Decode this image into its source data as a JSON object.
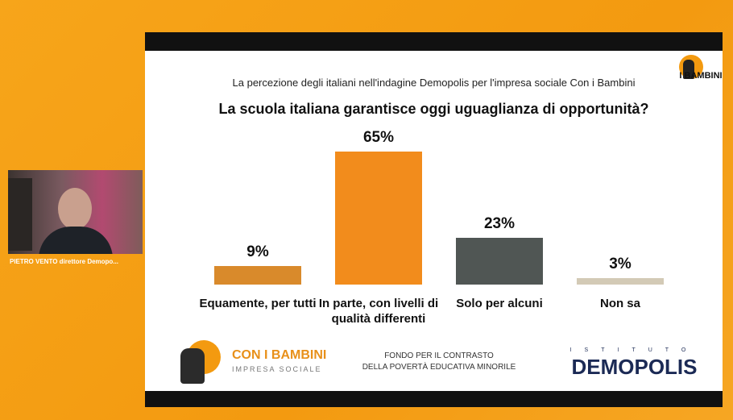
{
  "speaker_label": "PIETRO VENTO direttore Demopo...",
  "top_logo": "I BAMBINI",
  "chart_data": {
    "type": "bar",
    "subtitle": "La percezione degli italiani nell'indagine Demopolis per l'impresa sociale Con i Bambini",
    "title": "La scuola italiana garantisce oggi uguaglianza di opportunità?",
    "categories": [
      "Equamente, per tutti",
      "In parte, con livelli di qualità differenti",
      "Solo per alcuni",
      "Non sa"
    ],
    "values": [
      9,
      65,
      23,
      3
    ],
    "value_labels": [
      "9%",
      "65%",
      "23%",
      "3%"
    ],
    "colors": [
      "#d98a2b",
      "#f28c1c",
      "#505654",
      "#d3cab6"
    ]
  },
  "footer": {
    "brand": "CON I BAMBINI",
    "brand_sub": "IMPRESA SOCIALE",
    "fund_line1": "FONDO PER IL CONTRASTO",
    "fund_line2": "DELLA POVERTÀ EDUCATIVA MINORILE",
    "institute_small": "ISTITUTO",
    "institute": "DEMOPOLIS"
  }
}
